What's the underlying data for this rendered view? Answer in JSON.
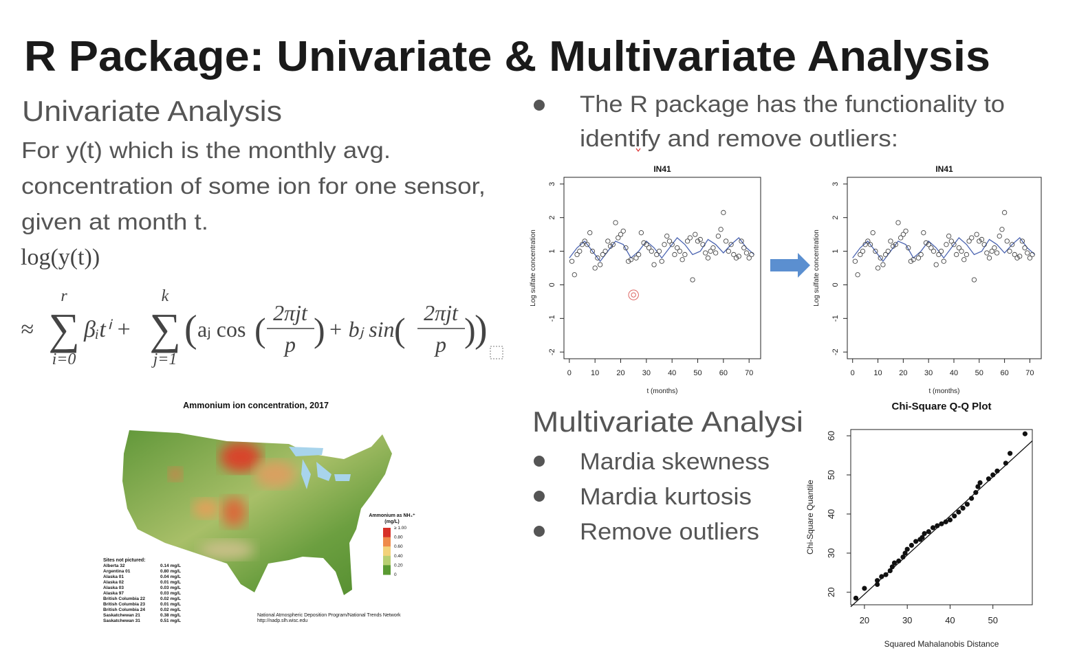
{
  "header": {
    "title": "R Package: Univariate & Multivariate Analysis"
  },
  "univariate": {
    "heading": "Univariate Analysis",
    "paragraph_lines": [
      "For y(t) which is the monthly avg.",
      "concentration of some ion for one sensor,",
      "given at month t."
    ],
    "formula": {
      "line1": "log(y(t))",
      "approx": "≈",
      "sum_symbol": "∑",
      "sum1": {
        "upper": "r",
        "lower": "i=0"
      },
      "term1": "βᵢtⁱ +",
      "sum2": {
        "upper": "k",
        "lower": "j=1"
      },
      "open_paren": "(",
      "close_paren": ")",
      "cos_term": "aⱼ cos",
      "sin_term": "+ bⱼ sin",
      "numerator": "2πjt",
      "denominator": "p"
    }
  },
  "outliers": {
    "text_lines": [
      "The R package has the functionality to",
      "identify and remove outliers:"
    ]
  },
  "plots": [
    {
      "title": "IN41",
      "ylabel": "Log sulfate concentration",
      "xlabel": "t (months)",
      "xlim": [
        -2.1,
        74.5
      ],
      "ylim": [
        -2.2,
        3.2
      ],
      "xticks": [
        0,
        10,
        20,
        30,
        40,
        50,
        60,
        70
      ],
      "yticks": [
        -2,
        -1,
        0,
        1,
        2,
        3
      ],
      "point_color": "#444444",
      "x": [
        1,
        2,
        3,
        4,
        5,
        6,
        7,
        8,
        9,
        10,
        11,
        12,
        13,
        14,
        15,
        16,
        17,
        18,
        19,
        20,
        21,
        22,
        23,
        24,
        25,
        26,
        27,
        28,
        29,
        30,
        31,
        32,
        33,
        34,
        35,
        36,
        37,
        38,
        39,
        40,
        41,
        42,
        43,
        44,
        45,
        46,
        47,
        48,
        49,
        50,
        51,
        52,
        53,
        54,
        55,
        56,
        57,
        58,
        59,
        60,
        61,
        62,
        63,
        64,
        65,
        66,
        67,
        68,
        69,
        70,
        71
      ],
      "y": [
        0.7,
        0.3,
        0.9,
        1.0,
        1.2,
        1.3,
        1.2,
        1.55,
        1.0,
        0.5,
        0.8,
        0.6,
        0.9,
        1.0,
        1.3,
        1.15,
        1.2,
        1.85,
        1.4,
        1.5,
        1.6,
        1.1,
        0.7,
        0.75,
        -0.3,
        0.8,
        0.9,
        1.55,
        1.25,
        1.2,
        1.1,
        1.0,
        0.6,
        0.9,
        1.0,
        0.7,
        1.2,
        1.45,
        1.3,
        1.2,
        0.9,
        1.1,
        1.0,
        0.75,
        0.9,
        1.3,
        1.4,
        0.15,
        1.5,
        1.3,
        1.35,
        1.2,
        0.95,
        0.8,
        1.0,
        1.1,
        0.95,
        1.45,
        1.65,
        2.15,
        1.3,
        1.0,
        1.2,
        0.9,
        0.8,
        0.85,
        1.3,
        1.1,
        0.95,
        0.8,
        0.9
      ],
      "highlight_index": 24,
      "highlight_color": "#d9534f",
      "fit": {
        "color": "#4a63b0",
        "x": [
          0,
          3,
          6,
          9,
          12,
          15,
          18,
          21,
          24,
          27,
          30,
          33,
          36,
          39,
          42,
          45,
          48,
          51,
          54,
          57,
          60,
          63,
          66,
          69,
          72
        ],
        "y": [
          0.8,
          1.1,
          1.3,
          1.0,
          0.7,
          1.0,
          1.3,
          1.2,
          0.8,
          1.0,
          1.3,
          1.1,
          0.8,
          1.1,
          1.4,
          1.2,
          0.9,
          1.0,
          1.35,
          1.2,
          0.95,
          1.2,
          1.4,
          1.1,
          0.9
        ]
      }
    },
    {
      "title": "IN41",
      "ylabel": "Log sulfate concentration",
      "xlabel": "t (months)",
      "xlim": [
        -2.1,
        74.5
      ],
      "ylim": [
        -2.2,
        3.2
      ],
      "xticks": [
        0,
        10,
        20,
        30,
        40,
        50,
        60,
        70
      ],
      "yticks": [
        -2,
        -1,
        0,
        1,
        2,
        3
      ],
      "point_color": "#444444",
      "x": [
        1,
        2,
        3,
        4,
        5,
        6,
        7,
        8,
        9,
        10,
        11,
        12,
        13,
        14,
        15,
        16,
        17,
        18,
        19,
        20,
        21,
        22,
        23,
        24,
        26,
        27,
        28,
        29,
        30,
        31,
        32,
        33,
        34,
        35,
        36,
        37,
        38,
        39,
        40,
        41,
        42,
        43,
        44,
        45,
        46,
        47,
        48,
        49,
        50,
        51,
        52,
        53,
        54,
        55,
        56,
        57,
        58,
        59,
        60,
        61,
        62,
        63,
        64,
        65,
        66,
        67,
        68,
        69,
        70,
        71
      ],
      "y": [
        0.7,
        0.3,
        0.9,
        1.0,
        1.2,
        1.3,
        1.2,
        1.55,
        1.0,
        0.5,
        0.8,
        0.6,
        0.9,
        1.0,
        1.3,
        1.15,
        1.2,
        1.85,
        1.4,
        1.5,
        1.6,
        1.1,
        0.7,
        0.75,
        0.8,
        0.9,
        1.55,
        1.25,
        1.2,
        1.1,
        1.0,
        0.6,
        0.9,
        1.0,
        0.7,
        1.2,
        1.45,
        1.3,
        1.2,
        0.9,
        1.1,
        1.0,
        0.75,
        0.9,
        1.3,
        1.4,
        0.15,
        1.5,
        1.3,
        1.35,
        1.2,
        0.95,
        0.8,
        1.0,
        1.1,
        0.95,
        1.45,
        1.65,
        2.15,
        1.3,
        1.0,
        1.2,
        0.9,
        0.8,
        0.85,
        1.3,
        1.1,
        0.95,
        0.8,
        0.9
      ],
      "fit": {
        "color": "#4a63b0",
        "x": [
          0,
          3,
          6,
          9,
          12,
          15,
          18,
          21,
          24,
          27,
          30,
          33,
          36,
          39,
          42,
          45,
          48,
          51,
          54,
          57,
          60,
          63,
          66,
          69,
          72
        ],
        "y": [
          0.8,
          1.1,
          1.3,
          1.0,
          0.7,
          1.0,
          1.3,
          1.2,
          0.8,
          1.0,
          1.3,
          1.1,
          0.8,
          1.1,
          1.4,
          1.2,
          0.9,
          1.0,
          1.35,
          1.2,
          0.95,
          1.2,
          1.4,
          1.1,
          0.9
        ]
      }
    }
  ],
  "multivariate": {
    "heading": "Multivariate Analysi",
    "bullets": [
      "Mardia skewness",
      "Mardia kurtosis",
      "Remove outliers"
    ]
  },
  "qq_plot": {
    "title": "Chi-Square Q-Q Plot",
    "xlabel": "Squared Mahalanobis Distance",
    "ylabel": "Chi-Square Quantile",
    "xlim": [
      16.8,
      59.2
    ],
    "ylim": [
      16.8,
      61.6
    ],
    "xticks": [
      20,
      30,
      40,
      50
    ],
    "yticks": [
      20,
      30,
      40,
      50,
      60
    ],
    "x": [
      18,
      20,
      23,
      23,
      24,
      25,
      26,
      26.5,
      27,
      28,
      29,
      29.5,
      30,
      31,
      32,
      33,
      33.5,
      34,
      35,
      36,
      37,
      38,
      39,
      40,
      41,
      42,
      43,
      44,
      45,
      46,
      46.5,
      47,
      49,
      50,
      51,
      53,
      54,
      57.5
    ],
    "y": [
      18.5,
      21,
      22,
      23,
      24,
      24.5,
      25.5,
      26.5,
      27.5,
      28,
      29,
      30,
      31,
      32,
      33,
      33.5,
      34,
      35,
      35.5,
      36.5,
      37,
      37.5,
      38,
      38.5,
      39.5,
      40.5,
      41.5,
      42.5,
      44,
      45.5,
      47,
      48,
      49,
      50,
      51,
      53,
      55.5,
      60.5
    ],
    "abline": {
      "intercept": -0.5,
      "slope": 1
    }
  },
  "map": {
    "title": "Ammonium ion concentration, 2017",
    "legend_title": [
      "Ammonium as NH₄⁺",
      "(mg/L)"
    ],
    "legend_ticks": [
      {
        "value": 1.0,
        "label": "≥ 1.00"
      },
      {
        "value": 0.8,
        "label": "0.80"
      },
      {
        "value": 0.6,
        "label": "0.60"
      },
      {
        "value": 0.4,
        "label": "0.40"
      },
      {
        "value": 0.2,
        "label": "0.20"
      },
      0
    ],
    "legend_colors": [
      "#d73027",
      "#ef8a4a",
      "#f3d27a",
      "#b8cf72",
      "#5a9a32"
    ],
    "sites_heading": "Sites not pictured:",
    "sites": [
      {
        "name": "Alberta 32",
        "value": "0.14 mg/L"
      },
      {
        "name": "Argentina 01",
        "value": "0.80 mg/L"
      },
      {
        "name": "Alaska 01",
        "value": "0.04 mg/L"
      },
      {
        "name": "Alaska 02",
        "value": "0.01 mg/L"
      },
      {
        "name": "Alaska 03",
        "value": "0.03 mg/L"
      },
      {
        "name": "Alaska 97",
        "value": "0.03 mg/L"
      },
      {
        "name": "British Columbia 22",
        "value": "0.02 mg/L"
      },
      {
        "name": "British Columbia 23",
        "value": "0.01 mg/L"
      },
      {
        "name": "British Columbia 24",
        "value": "0.02 mg/L"
      },
      {
        "name": "Saskatchewan 21",
        "value": "0.38 mg/L"
      },
      {
        "name": "Saskatchewan 31",
        "value": "0.51 mg/L"
      }
    ],
    "credit_lines": [
      "National Atmospheric Deposition Program/National Trends Network",
      "http://nadp.slh.wisc.edu"
    ]
  }
}
